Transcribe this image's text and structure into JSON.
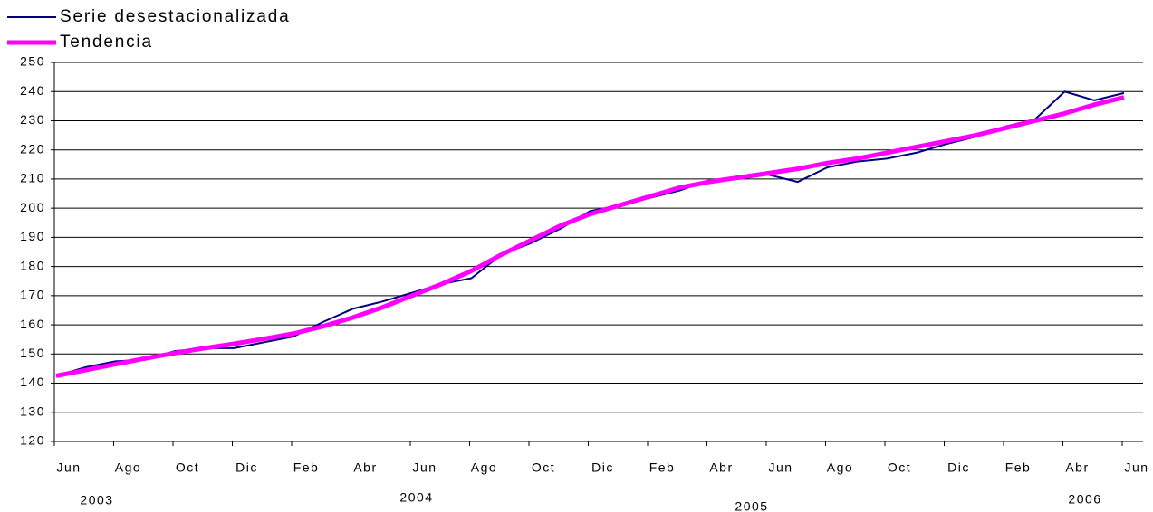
{
  "chart_data": {
    "type": "line",
    "categories": [
      "Jun",
      null,
      "Ago",
      null,
      "Oct",
      null,
      "Dic",
      null,
      "Feb",
      null,
      "Abr",
      null,
      "Jun",
      null,
      "Ago",
      null,
      "Oct",
      null,
      "Dic",
      null,
      "Feb",
      null,
      "Abr",
      null,
      "Jun",
      null,
      "Ago",
      null,
      "Oct",
      null,
      "Dic",
      null,
      "Feb",
      null,
      "Abr",
      null,
      "Jun"
    ],
    "year_labels": [
      "2003",
      "2004",
      "2005",
      "2006"
    ],
    "series": [
      {
        "name": "Serie desestacionalizada",
        "color": "#000080",
        "values": [
          142.5,
          145.5,
          147.5,
          148,
          151,
          152,
          152,
          154,
          156,
          161,
          165.5,
          168,
          171,
          174,
          176,
          184,
          188,
          193,
          199,
          201,
          203.5,
          206,
          209.5,
          210,
          211.5,
          209,
          214,
          216,
          217,
          219,
          222,
          224.5,
          228,
          230.5,
          240,
          237,
          239.5
        ]
      },
      {
        "name": "Tendencia",
        "color": "#ff00ff",
        "values": [
          142.5,
          144.5,
          146.5,
          148.5,
          150.3,
          152,
          153.5,
          155.2,
          157,
          159.5,
          162.5,
          166,
          170,
          174,
          178.5,
          184,
          189,
          194,
          198,
          201,
          204,
          207,
          209,
          210.5,
          212,
          213.5,
          215.5,
          217,
          219,
          221,
          223,
          225,
          227.5,
          230,
          232.5,
          235.5,
          238
        ]
      }
    ],
    "ylim": [
      120,
      250
    ],
    "yticks": [
      120,
      130,
      140,
      150,
      160,
      170,
      180,
      190,
      200,
      210,
      220,
      230,
      240,
      250
    ],
    "grid": true
  }
}
